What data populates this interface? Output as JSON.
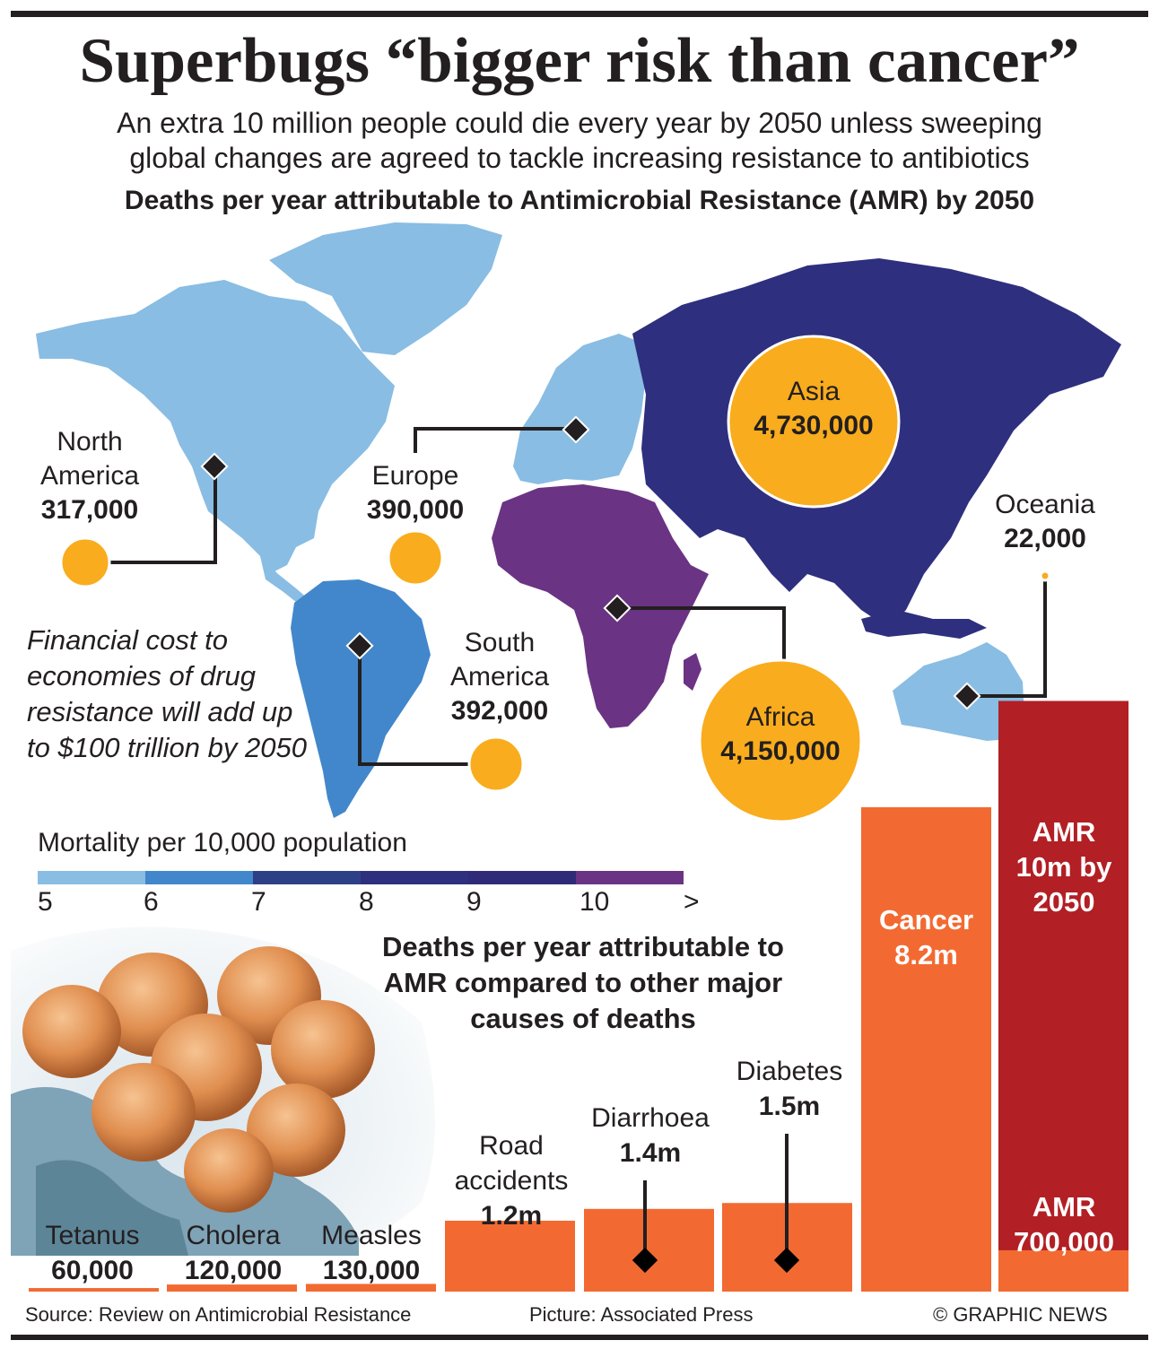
{
  "title": "Superbugs “bigger risk than cancer”",
  "subtitle_line1": "An extra 10 million people could die every year by 2050 unless sweeping",
  "subtitle_line2": "global changes are agreed to tackle increasing resistance to antibiotics",
  "map_heading": "Deaths per year attributable to Antimicrobial Resistance (AMR) by 2050",
  "regions": [
    {
      "name": "North America",
      "name_line1": "North",
      "name_line2": "America",
      "deaths": 317000,
      "deaths_label": "317,000",
      "mortality_color": "#89bde3"
    },
    {
      "name": "Europe",
      "deaths": 390000,
      "deaths_label": "390,000",
      "mortality_color": "#89bde3"
    },
    {
      "name": "Asia",
      "deaths": 4730000,
      "deaths_label": "4,730,000",
      "mortality_color": "#2e2f7e"
    },
    {
      "name": "Oceania",
      "deaths": 22000,
      "deaths_label": "22,000",
      "mortality_color": "#89bde3"
    },
    {
      "name": "South America",
      "name_line1": "South",
      "name_line2": "America",
      "deaths": 392000,
      "deaths_label": "392,000",
      "mortality_color": "#4287cb"
    },
    {
      "name": "Africa",
      "deaths": 4150000,
      "deaths_label": "4,150,000",
      "mortality_color": "#6b3383"
    }
  ],
  "note": "Financial cost to economies of drug resistance will add up to $100 trillion by 2050",
  "legend": {
    "title": "Mortality per 10,000 population",
    "ticks": [
      "5",
      "6",
      "7",
      "8",
      "9",
      "10",
      ">"
    ],
    "colors": [
      "#89bde3",
      "#4287cb",
      "#2d4087",
      "#2e2f7e",
      "#2f2b78",
      "#6b3383"
    ]
  },
  "bar_heading": "Deaths per year attributable to AMR compared to other major causes of deaths",
  "chart_data": {
    "type": "bar",
    "title": "Deaths per year attributable to AMR compared to other major causes of deaths",
    "categories": [
      "Tetanus",
      "Cholera",
      "Measles",
      "Road accidents",
      "Diarrhoea",
      "Diabetes",
      "Cancer",
      "AMR"
    ],
    "category_lines": {
      "Road accidents": [
        "Road",
        "accidents"
      ]
    },
    "values": [
      60000,
      120000,
      130000,
      1200000,
      1400000,
      1500000,
      8200000,
      700000
    ],
    "value_labels": [
      "60,000",
      "120,000",
      "130,000",
      "1.2m",
      "1.4m",
      "1.5m",
      "8.2m",
      "700,000"
    ],
    "amr_2050": {
      "value": 10000000,
      "label_lines": [
        "AMR",
        "10m by",
        "2050"
      ]
    },
    "colors": {
      "cause": "#f26a32",
      "amr_2050": "#b21f24"
    }
  },
  "footer": {
    "source": "Source: Review on Antimicrobial Resistance",
    "picture": "Picture: Associated Press",
    "copyright": "© GRAPHIC NEWS"
  }
}
